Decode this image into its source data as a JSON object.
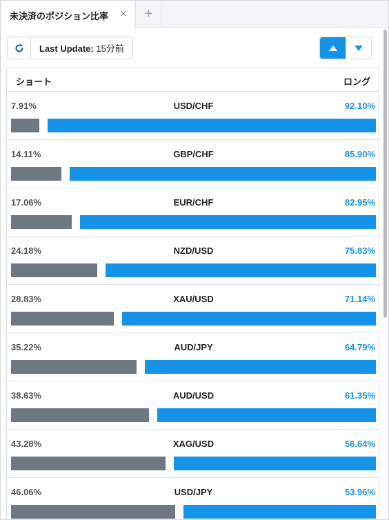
{
  "tab": {
    "label": "未決済のポジション比率",
    "close_glyph": "×",
    "add_glyph": "+"
  },
  "toolbar": {
    "update_label": "Last Update:",
    "update_value": "15分前"
  },
  "colors": {
    "accent": "#1593e8",
    "short_bar": "#6d7883"
  },
  "table": {
    "header_short": "ショート",
    "header_long": "ロング",
    "rows": [
      {
        "pair": "USD/CHF",
        "short_pct": "7.91%",
        "long_pct": "92.10%",
        "short": 7.91,
        "long": 92.1
      },
      {
        "pair": "GBP/CHF",
        "short_pct": "14.11%",
        "long_pct": "85.90%",
        "short": 14.11,
        "long": 85.9
      },
      {
        "pair": "EUR/CHF",
        "short_pct": "17.06%",
        "long_pct": "82.95%",
        "short": 17.06,
        "long": 82.95
      },
      {
        "pair": "NZD/USD",
        "short_pct": "24.18%",
        "long_pct": "75.83%",
        "short": 24.18,
        "long": 75.83
      },
      {
        "pair": "XAU/USD",
        "short_pct": "28.83%",
        "long_pct": "71.14%",
        "short": 28.83,
        "long": 71.14
      },
      {
        "pair": "AUD/JPY",
        "short_pct": "35.22%",
        "long_pct": "64.79%",
        "short": 35.22,
        "long": 64.79
      },
      {
        "pair": "AUD/USD",
        "short_pct": "38.63%",
        "long_pct": "61.35%",
        "short": 38.63,
        "long": 61.35
      },
      {
        "pair": "XAG/USD",
        "short_pct": "43.28%",
        "long_pct": "56.64%",
        "short": 43.28,
        "long": 56.64
      },
      {
        "pair": "USD/JPY",
        "short_pct": "46.06%",
        "long_pct": "53.96%",
        "short": 46.06,
        "long": 53.96
      }
    ]
  }
}
